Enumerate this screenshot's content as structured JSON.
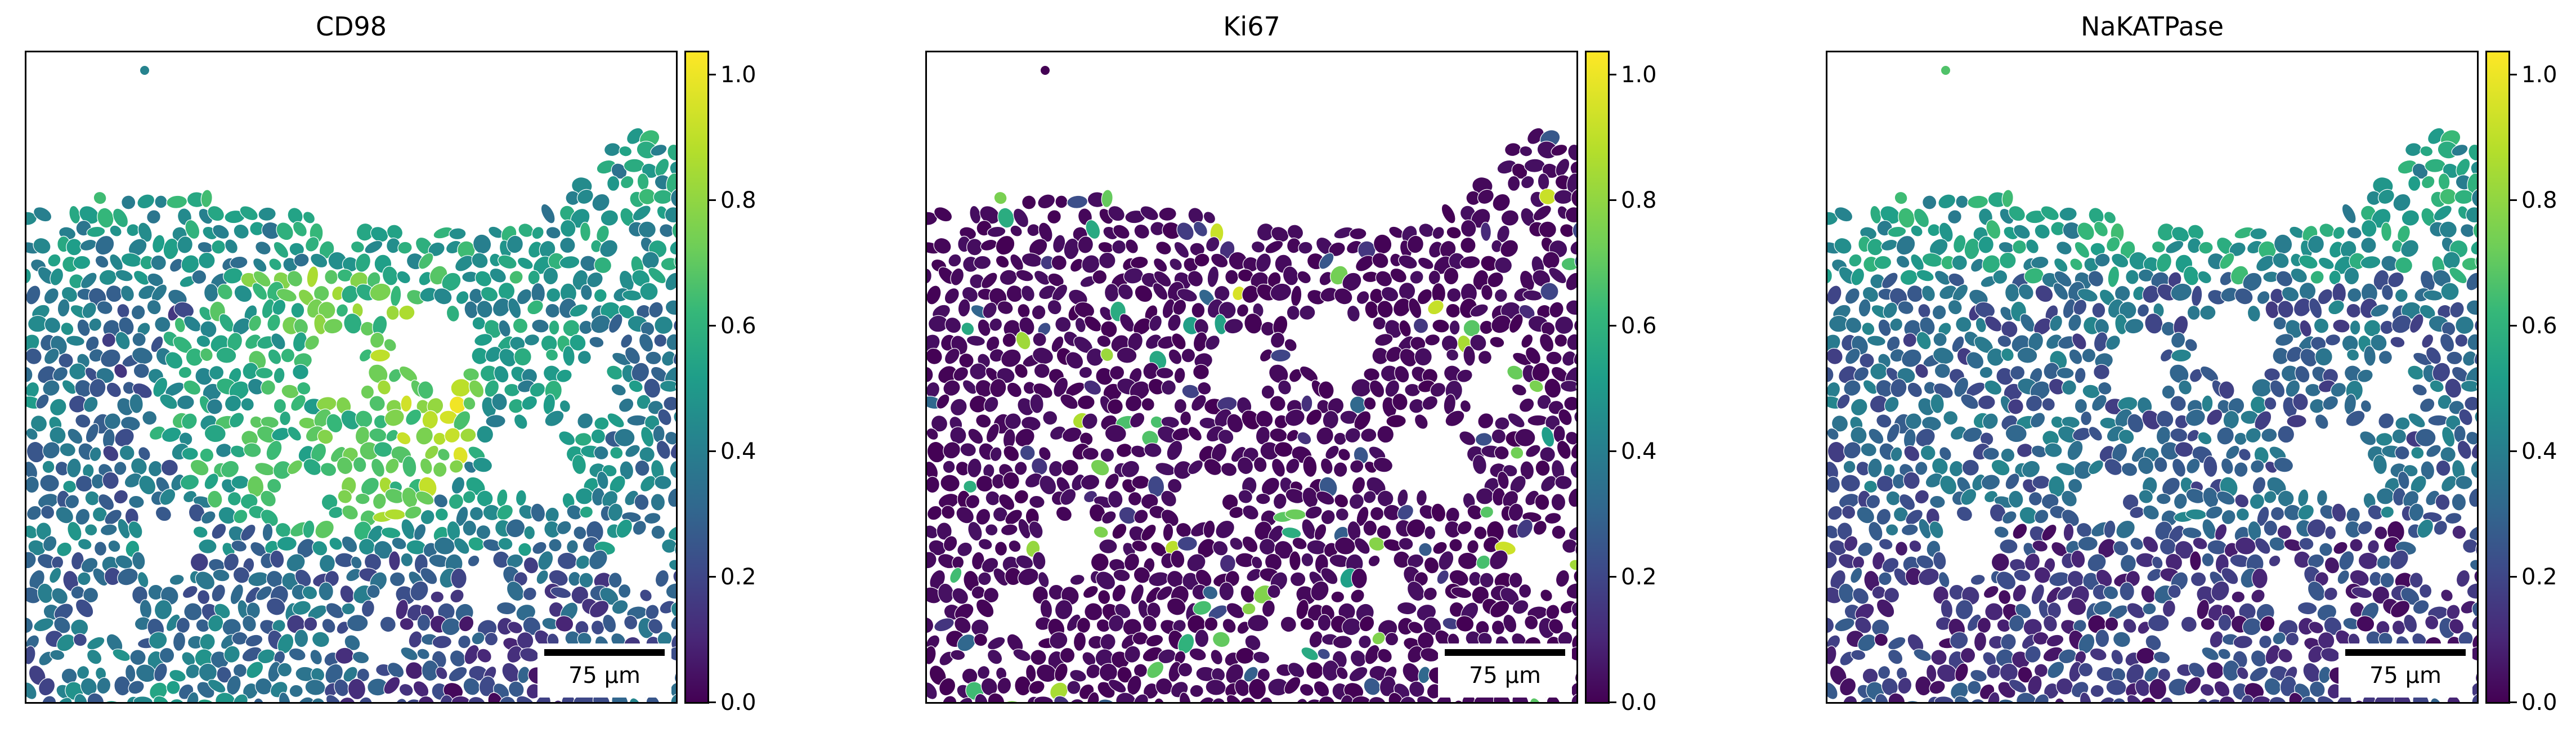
{
  "chart_data": [
    {
      "type": "heatmap",
      "title": "CD98",
      "scale_bar_label": "75 µm",
      "colormap": "viridis",
      "colorbar": {
        "min": 0.0,
        "max": 1.03,
        "ticks": [
          "0.0",
          "0.2",
          "0.4",
          "0.6",
          "0.8",
          "1.0"
        ]
      },
      "grid": false
    },
    {
      "type": "heatmap",
      "title": "Ki67",
      "scale_bar_label": "75 µm",
      "colormap": "viridis",
      "colorbar": {
        "min": 0.0,
        "max": 1.03,
        "ticks": [
          "0.0",
          "0.2",
          "0.4",
          "0.6",
          "0.8",
          "1.0"
        ]
      },
      "grid": false
    },
    {
      "type": "heatmap",
      "title": "NaKATPase",
      "scale_bar_label": "75 µm",
      "colormap": "viridis",
      "colorbar": {
        "min": 0.0,
        "max": 1.03,
        "ticks": [
          "0.0",
          "0.2",
          "0.4",
          "0.6",
          "0.8",
          "1.0"
        ]
      },
      "grid": false
    }
  ]
}
